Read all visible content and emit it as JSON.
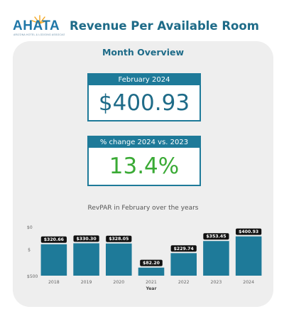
{
  "header": {
    "logo_text": "AHATA",
    "logo_subtitle": "ARIZONA HOTEL & LODGING ASSOCIATION",
    "title": "Revenue Per Available Room"
  },
  "overview": {
    "title": "Month Overview",
    "month_card": {
      "label": "February 2024",
      "value": "$400.93"
    },
    "change_card": {
      "label": "% change 2024 vs. 2023",
      "value": "13.4%"
    }
  },
  "colors": {
    "accent": "#1e7a99",
    "title": "#1e6b88",
    "positive": "#3aaa35",
    "panel": "#eeeeee"
  },
  "chart_data": {
    "type": "bar",
    "title": "RevPAR in February over the years",
    "xlabel": "Year",
    "ylabel": "$",
    "categories": [
      "2018",
      "2019",
      "2020",
      "2021",
      "2022",
      "2023",
      "2024"
    ],
    "values": [
      320.66,
      330.3,
      328.05,
      82.2,
      229.74,
      353.45,
      400.93
    ],
    "data_labels": [
      "$320.66",
      "$330.30",
      "$328.05",
      "$82.20",
      "$229.74",
      "$353.45",
      "$400.93"
    ],
    "y_ticks": [
      "$0",
      "$500"
    ],
    "ylim": [
      0,
      500
    ],
    "bar_color": "#1e7a99",
    "grid": false
  }
}
